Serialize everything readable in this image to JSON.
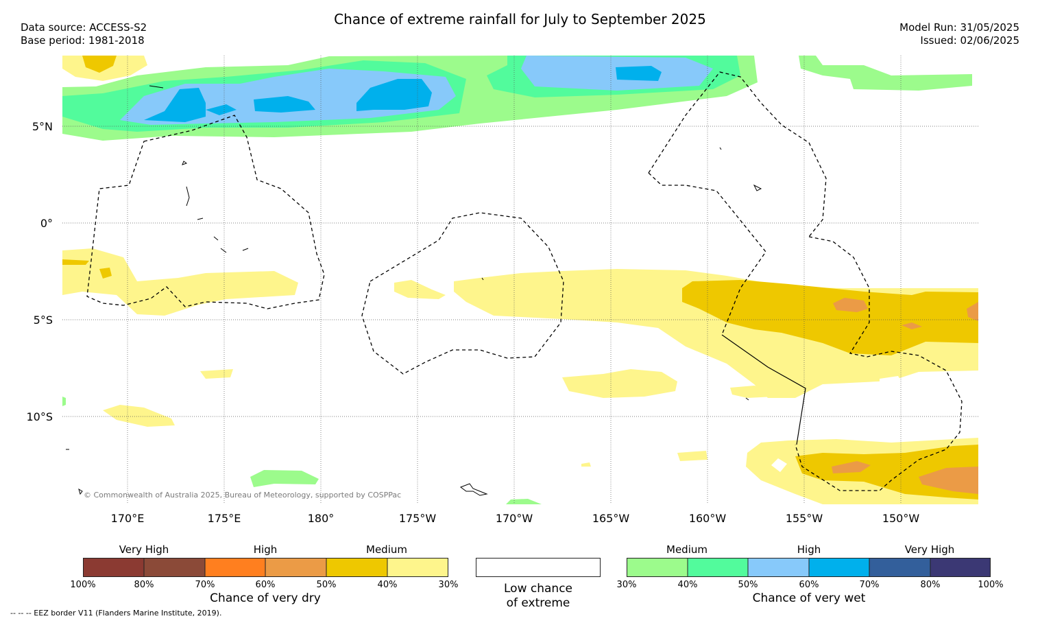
{
  "title": "Chance of extreme rainfall for July to September 2025",
  "meta": {
    "data_source": "Data source: ACCESS-S2",
    "base_period": "Base period: 1981-2018",
    "model_run": "Model Run: 31/05/2025",
    "issued": "Issued: 02/06/2025"
  },
  "map": {
    "lat_labels": [
      "5°N",
      "0°",
      "5°S",
      "10°S"
    ],
    "lon_labels": [
      "170°E",
      "175°E",
      "180°",
      "175°W",
      "170°W",
      "165°W",
      "160°W",
      "155°W",
      "150°W"
    ],
    "copyright": "© Commonwealth of Australia 2025, Bureau of Meteorology, supported by COSPPac",
    "colors": {
      "dry_30_40": "#fef58c",
      "dry_40_50": "#eec800",
      "dry_50_60": "#eb9b46",
      "wet_30_40": "#9cfb8c",
      "wet_40_50": "#52fb9c",
      "wet_50_60": "#87c9fa",
      "wet_60_70": "#00b0ec"
    }
  },
  "legend_dry": {
    "categories": [
      "Very High",
      "High",
      "Medium"
    ],
    "ticks": [
      "100%",
      "80%",
      "70%",
      "60%",
      "50%",
      "40%",
      "30%"
    ],
    "colors": [
      "#8b3a32",
      "#8b4a38",
      "#ff7f1f",
      "#eb9b46",
      "#eec800",
      "#fef58c"
    ],
    "label": "Chance of very dry"
  },
  "legend_low": {
    "label_line1": "Low chance",
    "label_line2": "of extreme"
  },
  "legend_wet": {
    "categories": [
      "Medium",
      "High",
      "Very High"
    ],
    "ticks": [
      "30%",
      "40%",
      "50%",
      "60%",
      "70%",
      "80%",
      "100%"
    ],
    "colors": [
      "#9cfb8c",
      "#52fb9c",
      "#87c9fa",
      "#00b0ec",
      "#335f9b",
      "#3b3874"
    ],
    "label": "Chance of very wet"
  },
  "footnote": "--  --  -- EEZ border V11 (Flanders Marine Institute, 2019)."
}
